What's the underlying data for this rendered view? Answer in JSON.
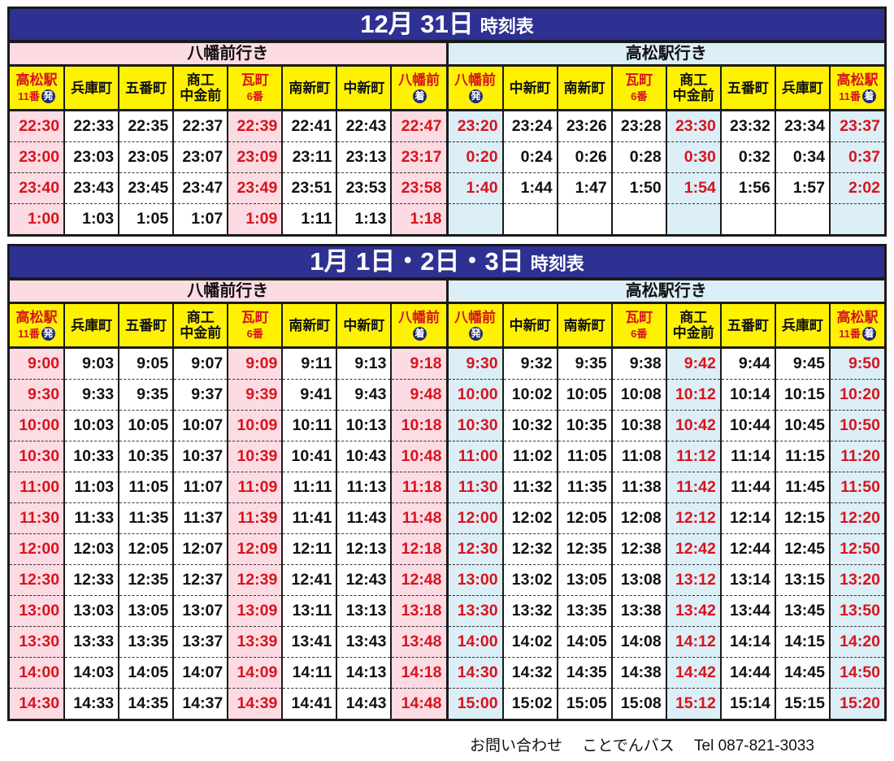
{
  "colors": {
    "title_bar": "#2e3192",
    "header_yellow": "#fff200",
    "pink": "#fcdbe3",
    "light_blue": "#dceef6",
    "red_text": "#d7141e"
  },
  "stations_to_yahatamae": [
    {
      "name": "高松駅",
      "sub": "11番",
      "badge": "発",
      "red": true
    },
    {
      "name": "兵庫町"
    },
    {
      "name": "五番町"
    },
    {
      "name": "商工\n中金前"
    },
    {
      "name": "瓦町",
      "sub": "6番",
      "red": true
    },
    {
      "name": "南新町"
    },
    {
      "name": "中新町"
    },
    {
      "name": "八幡前",
      "badge": "着",
      "red": true
    }
  ],
  "stations_to_takamatsu": [
    {
      "name": "八幡前",
      "badge": "発",
      "red": true
    },
    {
      "name": "中新町"
    },
    {
      "name": "南新町"
    },
    {
      "name": "瓦町",
      "sub": "6番",
      "red": true
    },
    {
      "name": "商工\n中金前"
    },
    {
      "name": "五番町"
    },
    {
      "name": "兵庫町"
    },
    {
      "name": "高松駅",
      "sub": "11番",
      "badge": "着",
      "red": true
    }
  ],
  "sections": [
    {
      "title_date": "12月 31日",
      "title_suffix": "時刻表",
      "left": {
        "direction": "八幡前行き",
        "rows": [
          [
            "22:30",
            "22:33",
            "22:35",
            "22:37",
            "22:39",
            "22:41",
            "22:43",
            "22:47"
          ],
          [
            "23:00",
            "23:03",
            "23:05",
            "23:07",
            "23:09",
            "23:11",
            "23:13",
            "23:17"
          ],
          [
            "23:40",
            "23:43",
            "23:45",
            "23:47",
            "23:49",
            "23:51",
            "23:53",
            "23:58"
          ],
          [
            "1:00",
            "1:03",
            "1:05",
            "1:07",
            "1:09",
            "1:11",
            "1:13",
            "1:18"
          ]
        ]
      },
      "right": {
        "direction": "高松駅行き",
        "rows": [
          [
            "23:20",
            "23:24",
            "23:26",
            "23:28",
            "23:30",
            "23:32",
            "23:34",
            "23:37"
          ],
          [
            "0:20",
            "0:24",
            "0:26",
            "0:28",
            "0:30",
            "0:32",
            "0:34",
            "0:37"
          ],
          [
            "1:40",
            "1:44",
            "1:47",
            "1:50",
            "1:54",
            "1:56",
            "1:57",
            "2:02"
          ],
          [
            "",
            "",
            "",
            "",
            "",
            "",
            "",
            ""
          ]
        ]
      }
    },
    {
      "title_date": "1月 1日・2日・3日",
      "title_suffix": "時刻表",
      "left": {
        "direction": "八幡前行き",
        "rows": [
          [
            "9:00",
            "9:03",
            "9:05",
            "9:07",
            "9:09",
            "9:11",
            "9:13",
            "9:18"
          ],
          [
            "9:30",
            "9:33",
            "9:35",
            "9:37",
            "9:39",
            "9:41",
            "9:43",
            "9:48"
          ],
          [
            "10:00",
            "10:03",
            "10:05",
            "10:07",
            "10:09",
            "10:11",
            "10:13",
            "10:18"
          ],
          [
            "10:30",
            "10:33",
            "10:35",
            "10:37",
            "10:39",
            "10:41",
            "10:43",
            "10:48"
          ],
          [
            "11:00",
            "11:03",
            "11:05",
            "11:07",
            "11:09",
            "11:11",
            "11:13",
            "11:18"
          ],
          [
            "11:30",
            "11:33",
            "11:35",
            "11:37",
            "11:39",
            "11:41",
            "11:43",
            "11:48"
          ],
          [
            "12:00",
            "12:03",
            "12:05",
            "12:07",
            "12:09",
            "12:11",
            "12:13",
            "12:18"
          ],
          [
            "12:30",
            "12:33",
            "12:35",
            "12:37",
            "12:39",
            "12:41",
            "12:43",
            "12:48"
          ],
          [
            "13:00",
            "13:03",
            "13:05",
            "13:07",
            "13:09",
            "13:11",
            "13:13",
            "13:18"
          ],
          [
            "13:30",
            "13:33",
            "13:35",
            "13:37",
            "13:39",
            "13:41",
            "13:43",
            "13:48"
          ],
          [
            "14:00",
            "14:03",
            "14:05",
            "14:07",
            "14:09",
            "14:11",
            "14:13",
            "14:18"
          ],
          [
            "14:30",
            "14:33",
            "14:35",
            "14:37",
            "14:39",
            "14:41",
            "14:43",
            "14:48"
          ]
        ]
      },
      "right": {
        "direction": "高松駅行き",
        "rows": [
          [
            "9:30",
            "9:32",
            "9:35",
            "9:38",
            "9:42",
            "9:44",
            "9:45",
            "9:50"
          ],
          [
            "10:00",
            "10:02",
            "10:05",
            "10:08",
            "10:12",
            "10:14",
            "10:15",
            "10:20"
          ],
          [
            "10:30",
            "10:32",
            "10:35",
            "10:38",
            "10:42",
            "10:44",
            "10:45",
            "10:50"
          ],
          [
            "11:00",
            "11:02",
            "11:05",
            "11:08",
            "11:12",
            "11:14",
            "11:15",
            "11:20"
          ],
          [
            "11:30",
            "11:32",
            "11:35",
            "11:38",
            "11:42",
            "11:44",
            "11:45",
            "11:50"
          ],
          [
            "12:00",
            "12:02",
            "12:05",
            "12:08",
            "12:12",
            "12:14",
            "12:15",
            "12:20"
          ],
          [
            "12:30",
            "12:32",
            "12:35",
            "12:38",
            "12:42",
            "12:44",
            "12:45",
            "12:50"
          ],
          [
            "13:00",
            "13:02",
            "13:05",
            "13:08",
            "13:12",
            "13:14",
            "13:15",
            "13:20"
          ],
          [
            "13:30",
            "13:32",
            "13:35",
            "13:38",
            "13:42",
            "13:44",
            "13:45",
            "13:50"
          ],
          [
            "14:00",
            "14:02",
            "14:05",
            "14:08",
            "14:12",
            "14:14",
            "14:15",
            "14:20"
          ],
          [
            "14:30",
            "14:32",
            "14:35",
            "14:38",
            "14:42",
            "14:44",
            "14:45",
            "14:50"
          ],
          [
            "15:00",
            "15:02",
            "15:05",
            "15:08",
            "15:12",
            "15:14",
            "15:15",
            "15:20"
          ]
        ]
      }
    }
  ],
  "footer": {
    "contact_label": "お問い合わせ",
    "company": "ことでんバス",
    "tel": "Tel 087-821-3033"
  }
}
